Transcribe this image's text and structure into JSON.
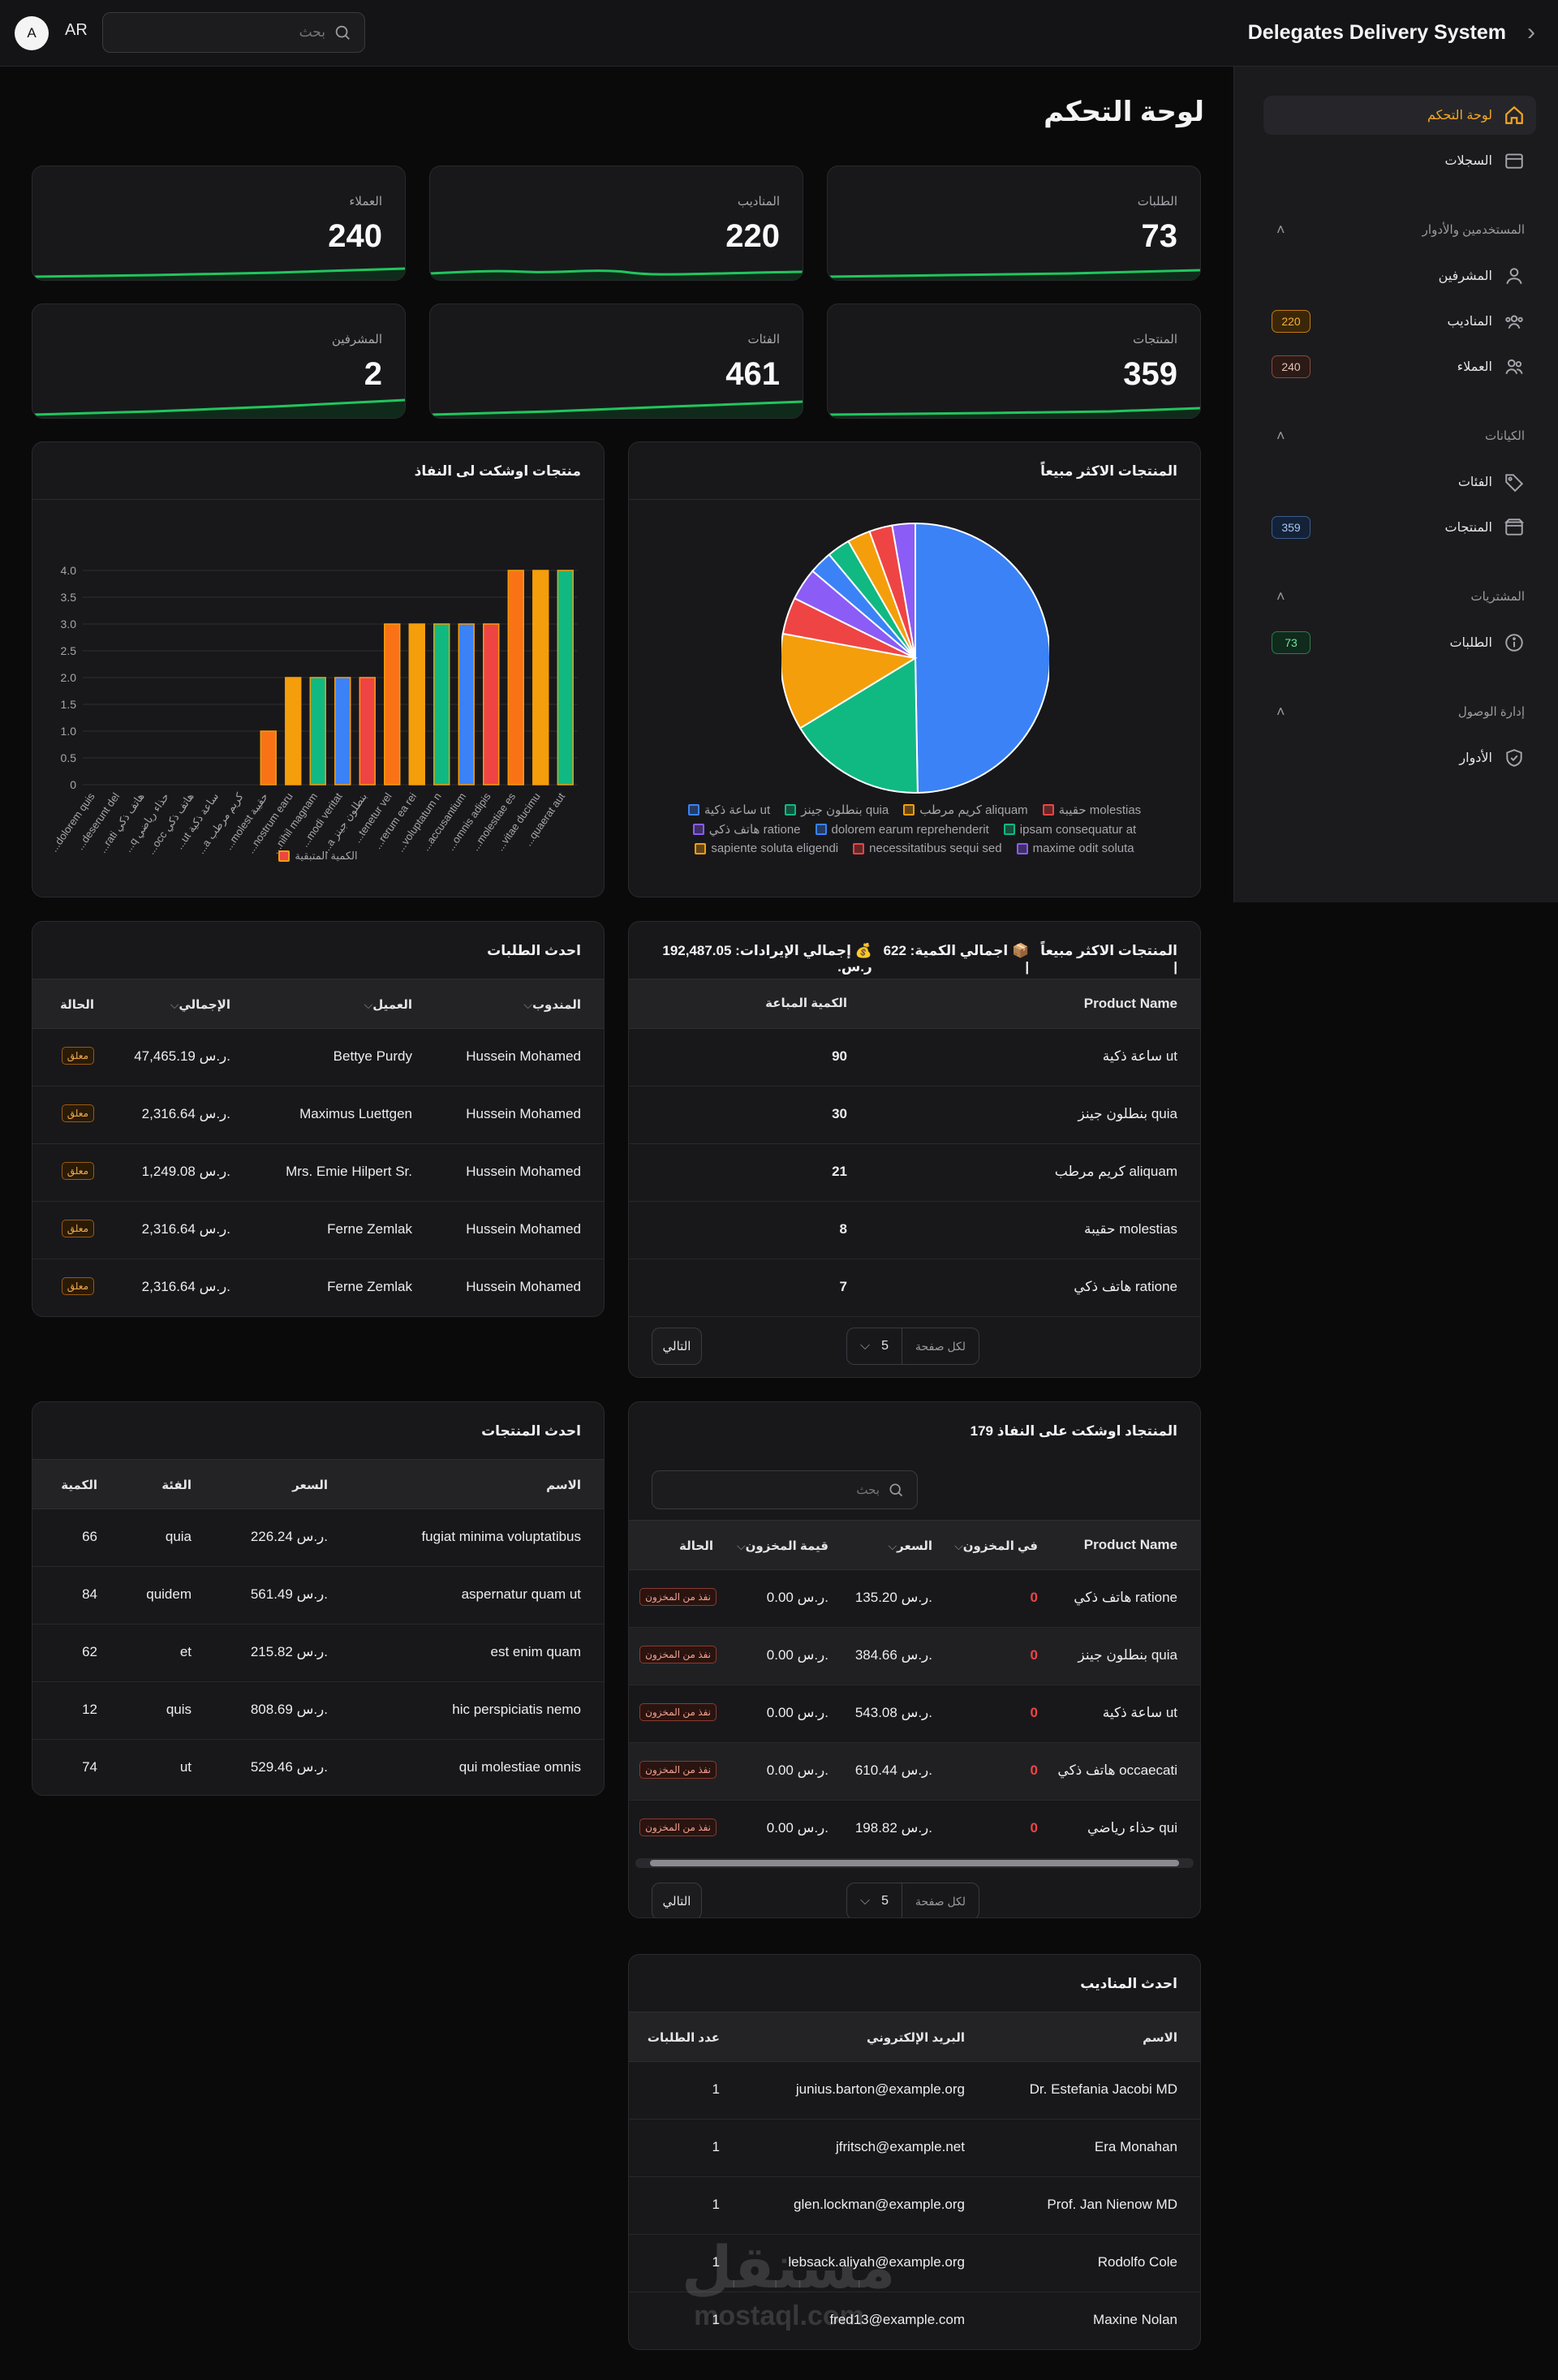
{
  "header": {
    "brand": "Delegates Delivery System",
    "avatar": "A",
    "lang": "AR",
    "search_placeholder": "بحث"
  },
  "sidebar": {
    "dashboard": "لوحة التحكم",
    "logs": "السجلات",
    "group_users": "المستخدمين والأدوار",
    "supervisors": "المشرفين",
    "delegates": "المناديب",
    "delegates_count": "220",
    "customers": "العملاء",
    "customers_count": "240",
    "group_entities": "الكيانات",
    "categories": "الفئات",
    "products": "المنتجات",
    "products_count": "359",
    "group_purchases": "المشتريات",
    "orders": "الطلبات",
    "orders_count": "73",
    "group_access": "إدارة الوصول",
    "roles": "الأدوار"
  },
  "page": {
    "title": "لوحة التحكم"
  },
  "stats": [
    {
      "label": "الطلبات",
      "value": "73"
    },
    {
      "label": "المناديب",
      "value": "220"
    },
    {
      "label": "العملاء",
      "value": "240"
    },
    {
      "label": "المنتجات",
      "value": "359"
    },
    {
      "label": "الفئات",
      "value": "461"
    },
    {
      "label": "المشرفين",
      "value": "2"
    }
  ],
  "colors": {
    "blue": "#3b82f6",
    "green": "#10b981",
    "orange": "#f59e0b",
    "red": "#ef4444",
    "purple": "#8b5cf6",
    "accent": "#f5a623",
    "spark": "#22c55e"
  },
  "pie_card": {
    "title": "المنتجات الاكثر مبيعاً"
  },
  "bar_card": {
    "title": "منتجات اوشكت لى النفاذ",
    "legend": "الكمية المتبقية"
  },
  "chart_data": [
    {
      "type": "pie",
      "title": "المنتجات الاكثر مبيعاً",
      "labels": [
        "ساعة ذكية ut",
        "بنطلون جينز quia",
        "كريم مرطب aliquam",
        "حقيبة molestias",
        "هاتف ذكي ratione",
        "dolorem earum reprehenderit",
        "ipsam consequatur at",
        "sapiente soluta eligendi",
        "necessitatibus sequi sed",
        "maxime odit soluta"
      ],
      "values": [
        90,
        30,
        21,
        8,
        7,
        5,
        5,
        5,
        5,
        5
      ],
      "colors": [
        "#3b82f6",
        "#10b981",
        "#f59e0b",
        "#ef4444",
        "#8b5cf6",
        "#3b82f6",
        "#10b981",
        "#f59e0b",
        "#ef4444",
        "#8b5cf6"
      ]
    },
    {
      "type": "bar",
      "title": "منتجات اوشكت لى النفاذ",
      "categories": [
        "...dolorem quis",
        "...deserunt del",
        "...rati هاتف ذكي",
        "...q حذاء رياضي",
        "...occ هاتف ذكي",
        "...ut ساعة ذكية",
        "...a كريم مرطب",
        "...molest حقيبة",
        "...nostrum earu",
        "...nihil magnam",
        "...modi veritat",
        "...a بنطلون جينز",
        "...tenetur vel",
        "...rerum ea rei",
        "...voluptatum n",
        "...accusantium",
        "...omnis adipis",
        "...molestiae es",
        "...vitae ducimu",
        "...quaerat aut"
      ],
      "values": [
        0,
        0,
        0,
        0,
        0,
        0,
        0,
        1,
        2,
        2,
        2,
        2,
        3,
        3,
        3,
        3,
        3,
        4,
        4,
        4
      ],
      "colors": [
        "#f97316",
        "#f97316",
        "#f59e0b",
        "#f59e0b",
        "#f59e0b",
        "#f59e0b",
        "#f59e0b",
        "#f97316",
        "#f59e0b",
        "#10b981",
        "#3b82f6",
        "#ef4444",
        "#f97316",
        "#f59e0b",
        "#10b981",
        "#3b82f6",
        "#ef4444",
        "#f97316",
        "#f59e0b",
        "#10b981"
      ],
      "ylim": [
        0,
        4
      ],
      "yticks": [
        "0",
        "0.5",
        "1.0",
        "1.5",
        "2.0",
        "2.5",
        "3.0",
        "3.5",
        "4.0"
      ],
      "legend": "الكمية المتبقية",
      "grid": true
    }
  ],
  "top_products": {
    "title_prefix": "المنتجات الاكثر مبيعاً |",
    "qty_label": "📦 اجمالي الكمية: 622 |",
    "rev_label": "💰 إجمالي الإيرادات: 192,487.05 ر.س.",
    "headers": {
      "name": "Product Name",
      "qty": "الكمية المباعة"
    },
    "rows": [
      {
        "name": "ساعة ذكية ut",
        "qty": "90"
      },
      {
        "name": "بنطلون جينز quia",
        "qty": "30"
      },
      {
        "name": "كريم مرطب aliquam",
        "qty": "21"
      },
      {
        "name": "حقيبة molestias",
        "qty": "8"
      },
      {
        "name": "هاتف ذكي ratione",
        "qty": "7"
      }
    ],
    "per_page_label": "لكل صفحة",
    "per_page": "5",
    "next": "التالي"
  },
  "latest_orders": {
    "title": "احدث الطلبات",
    "headers": {
      "delegate": "المندوب",
      "customer": "العميل",
      "total": "الإجمالي",
      "status": "الحالة"
    },
    "rows": [
      {
        "delegate": "Hussein Mohamed",
        "customer": "Bettye Purdy",
        "total": "47,465.19 ر.س.",
        "status": "معلق"
      },
      {
        "delegate": "Hussein Mohamed",
        "customer": "Maximus Luettgen",
        "total": "2,316.64 ر.س.",
        "status": "معلق"
      },
      {
        "delegate": "Hussein Mohamed",
        "customer": "Mrs. Emie Hilpert Sr.",
        "total": "1,249.08 ر.س.",
        "status": "معلق"
      },
      {
        "delegate": "Hussein Mohamed",
        "customer": "Ferne Zemlak",
        "total": "2,316.64 ر.س.",
        "status": "معلق"
      },
      {
        "delegate": "Hussein Mohamed",
        "customer": "Ferne Zemlak",
        "total": "2,316.64 ر.س.",
        "status": "معلق"
      }
    ]
  },
  "low_stock": {
    "title": "المنتجاد اوشكت على النفاذ 179",
    "search_placeholder": "بحث",
    "headers": {
      "name": "Product Name",
      "stock": "في المخزون",
      "price": "السعر",
      "value": "قيمة المخزون",
      "status": "الحالة"
    },
    "rows": [
      {
        "name": "هاتف ذكي ratione",
        "stock": "0",
        "price": "135.20 ر.س.",
        "value": "0.00 ر.س.",
        "status": "نفذ من المخزون"
      },
      {
        "name": "بنطلون جينز quia",
        "stock": "0",
        "price": "384.66 ر.س.",
        "value": "0.00 ر.س.",
        "status": "نفذ من المخزون"
      },
      {
        "name": "ساعة ذكية ut",
        "stock": "0",
        "price": "543.08 ر.س.",
        "value": "0.00 ر.س.",
        "status": "نفذ من المخزون"
      },
      {
        "name": "هاتف ذكي occaecati",
        "stock": "0",
        "price": "610.44 ر.س.",
        "value": "0.00 ر.س.",
        "status": "نفذ من المخزون"
      },
      {
        "name": "حذاء رياضي qui",
        "stock": "0",
        "price": "198.82 ر.س.",
        "value": "0.00 ر.س.",
        "status": "نفذ من المخزون"
      }
    ],
    "per_page_label": "لكل صفحة",
    "per_page": "5",
    "next": "التالي"
  },
  "latest_products": {
    "title": "احدث المنتجات",
    "headers": {
      "name": "الاسم",
      "price": "السعر",
      "category": "الفئة",
      "qty": "الكمية"
    },
    "rows": [
      {
        "name": "fugiat minima voluptatibus",
        "price": "226.24 ر.س.",
        "category": "quia",
        "qty": "66"
      },
      {
        "name": "aspernatur quam ut",
        "price": "561.49 ر.س.",
        "category": "quidem",
        "qty": "84"
      },
      {
        "name": "est enim quam",
        "price": "215.82 ر.س.",
        "category": "et",
        "qty": "62"
      },
      {
        "name": "hic perspiciatis nemo",
        "price": "808.69 ر.س.",
        "category": "quis",
        "qty": "12"
      },
      {
        "name": "qui molestiae omnis",
        "price": "529.46 ر.س.",
        "category": "ut",
        "qty": "74"
      }
    ]
  },
  "latest_delegates": {
    "title": "احدث المناديب",
    "headers": {
      "name": "الاسم",
      "email": "البريد الإلكتروني",
      "orders": "عدد الطلبات"
    },
    "rows": [
      {
        "name": "Dr. Estefania Jacobi MD",
        "email": "junius.barton@example.org",
        "orders": "1"
      },
      {
        "name": "Era Monahan",
        "email": "jfritsch@example.net",
        "orders": "1"
      },
      {
        "name": "Prof. Jan Nienow MD",
        "email": "glen.lockman@example.org",
        "orders": "1"
      },
      {
        "name": "Rodolfo Cole",
        "email": "lebsack.aliyah@example.org",
        "orders": "1"
      },
      {
        "name": "Maxine Nolan",
        "email": "fred13@example.com",
        "orders": "1"
      }
    ]
  },
  "watermark": {
    "text": "مستقل",
    "sub": "mostaql.com"
  }
}
